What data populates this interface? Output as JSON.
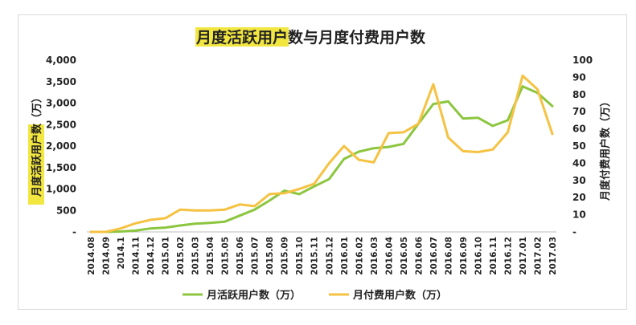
{
  "chart_data": {
    "type": "line",
    "title": "月度活跃用户数与月度付费用户数",
    "title_highlight": "月度活跃用户",
    "title_rest": "数与月度付费用户数",
    "ylabel_left": "月度活跃用户数（万）",
    "ylabel_right": "月度付费用户数（万）",
    "ylim_left": [
      0,
      4000
    ],
    "ylim_right": [
      0,
      100
    ],
    "yticks_left": [
      "-",
      "500",
      "1,000",
      "1,500",
      "2,000",
      "2,500",
      "3,000",
      "3,500",
      "4,000"
    ],
    "yticks_right": [
      "-",
      "10",
      "20",
      "30",
      "40",
      "50",
      "60",
      "70",
      "80",
      "90",
      "100"
    ],
    "x_tick_labels": [
      "2014.08",
      "2014.09",
      "2014.1",
      "2014.11",
      "2014.12",
      "2015.01",
      "2015.02",
      "2015.03",
      "2015.04",
      "2015.05",
      "2015.06",
      "2015.07",
      "2015.08",
      "2015.09",
      "2015.10",
      "2015.11",
      "2015.12",
      "2016.01",
      "2016.02",
      "2016.03",
      "2016.04",
      "2016.05",
      "2016.06",
      "2016.07",
      "2016.08",
      "2016.09",
      "2016.10",
      "2016.11",
      "2016.12",
      "2017.01",
      "2017.02",
      "2017.03"
    ],
    "x_categories": [
      "2014.08",
      "2014.09",
      "2014.10",
      "2014.11",
      "2014.12",
      "2015.01",
      "2015.02",
      "2015.03",
      "2015.04",
      "2015.05",
      "2015.06",
      "2015.07",
      "2015.08",
      "2015.09",
      "2015.10",
      "2015.11",
      "2015.12",
      "2016.01",
      "2016.02",
      "2016.03",
      "2016.04",
      "2016.05",
      "2016.06",
      "2016.07",
      "2016.08",
      "2016.09",
      "2016.10",
      "2016.11",
      "2016.12",
      "2017.01",
      "2017.02",
      "2017.03"
    ],
    "series": [
      {
        "name": "月活跃用户数（万）",
        "axis": "left",
        "color": "#8cc63f",
        "values": [
          0,
          0,
          10,
          30,
          80,
          100,
          150,
          190,
          210,
          240,
          380,
          520,
          730,
          960,
          880,
          1060,
          1230,
          1700,
          1870,
          1950,
          1980,
          2050,
          2520,
          2980,
          3040,
          2640,
          2660,
          2470,
          2600,
          3390,
          3240,
          2930
        ]
      },
      {
        "name": "月付费用户数（万）",
        "axis": "right",
        "color": "#f5c242",
        "values": [
          0,
          0,
          2,
          5,
          7,
          8,
          13,
          12.5,
          12.5,
          13,
          16,
          15,
          22,
          22.5,
          25,
          28,
          40,
          50,
          42,
          40.5,
          57.5,
          58,
          63,
          86,
          55,
          47,
          46.5,
          48,
          58,
          91,
          83,
          57
        ]
      }
    ],
    "legend_position": "bottom",
    "grid": false
  },
  "colors": {
    "green": "#8cc63f",
    "yellow": "#f5c242",
    "highlight": "#f2e640",
    "frame": "#d9d9d9",
    "text": "#222222"
  }
}
